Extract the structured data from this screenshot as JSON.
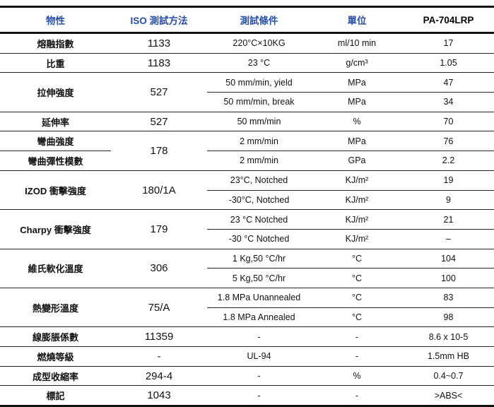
{
  "header": {
    "property": "物性",
    "iso": "ISO  測試方法",
    "condition": "測試條件",
    "unit": "單位",
    "product": "PA-704LRP"
  },
  "rows": {
    "melt": {
      "property": "熔融指數",
      "iso": "1133",
      "condition": "220°C×10KG",
      "unit": "ml/10 min",
      "value": "17"
    },
    "density": {
      "property": "比重",
      "iso": "1183",
      "condition": "23 °C",
      "unit": "g/cm³",
      "value": "1.05"
    },
    "tensile": {
      "property": "拉伸強度",
      "iso": "527",
      "sub": [
        {
          "condition": "50 mm/min, yield",
          "unit": "MPa",
          "value": "47"
        },
        {
          "condition": "50 mm/min, break",
          "unit": "MPa",
          "value": "34"
        }
      ]
    },
    "elongation": {
      "property": "延伸率",
      "iso": "527",
      "condition": "50 mm/min",
      "unit": "%",
      "value": "70"
    },
    "flexural": {
      "iso": "178",
      "sub": [
        {
          "property": "彎曲強度",
          "condition": "2 mm/min",
          "unit": "MPa",
          "value": "76"
        },
        {
          "property": "彎曲彈性模數",
          "condition": "2 mm/min",
          "unit": "GPa",
          "value": "2.2"
        }
      ]
    },
    "izod": {
      "property": "IZOD  衝擊強度",
      "iso": "180/1A",
      "sub": [
        {
          "condition": "23°C, Notched",
          "unit": "KJ/m²",
          "value": "19"
        },
        {
          "condition": "-30°C, Notched",
          "unit": "KJ/m²",
          "value": "9"
        }
      ]
    },
    "charpy": {
      "property": "Charpy  衝擊強度",
      "iso": "179",
      "sub": [
        {
          "condition": "23 °C Notched",
          "unit": "KJ/m²",
          "value": "21"
        },
        {
          "condition": "-30 °C Notched",
          "unit": "KJ/m²",
          "value": "–"
        }
      ]
    },
    "vicat": {
      "property": "維氏軟化溫度",
      "iso": "306",
      "sub": [
        {
          "condition": "1 Kg,50 °C/hr",
          "unit": "°C",
          "value": "104"
        },
        {
          "condition": "5 Kg,50 °C/hr",
          "unit": "°C",
          "value": "100"
        }
      ]
    },
    "hdt": {
      "property": "熱變形溫度",
      "iso": "75/A",
      "sub": [
        {
          "condition": "1.8 MPa Unannealed",
          "unit": "°C",
          "value": "83"
        },
        {
          "condition": "1.8 MPa Annealed",
          "unit": "°C",
          "value": "98"
        }
      ]
    },
    "cte": {
      "property": "線膨脹係數",
      "iso": "11359",
      "condition": "-",
      "unit": "-",
      "value": "8.6 x 10-5"
    },
    "flame": {
      "property": "燃燒等級",
      "iso": "-",
      "condition": "UL-94",
      "unit": "-",
      "value": "1.5mm HB"
    },
    "shrink": {
      "property": "成型收縮率",
      "iso": "294-4",
      "condition": "-",
      "unit": "%",
      "value": "0.4~0.7"
    },
    "marking": {
      "property": "標記",
      "iso": "1043",
      "condition": "-",
      "unit": "-",
      "value": ">ABS<"
    }
  }
}
